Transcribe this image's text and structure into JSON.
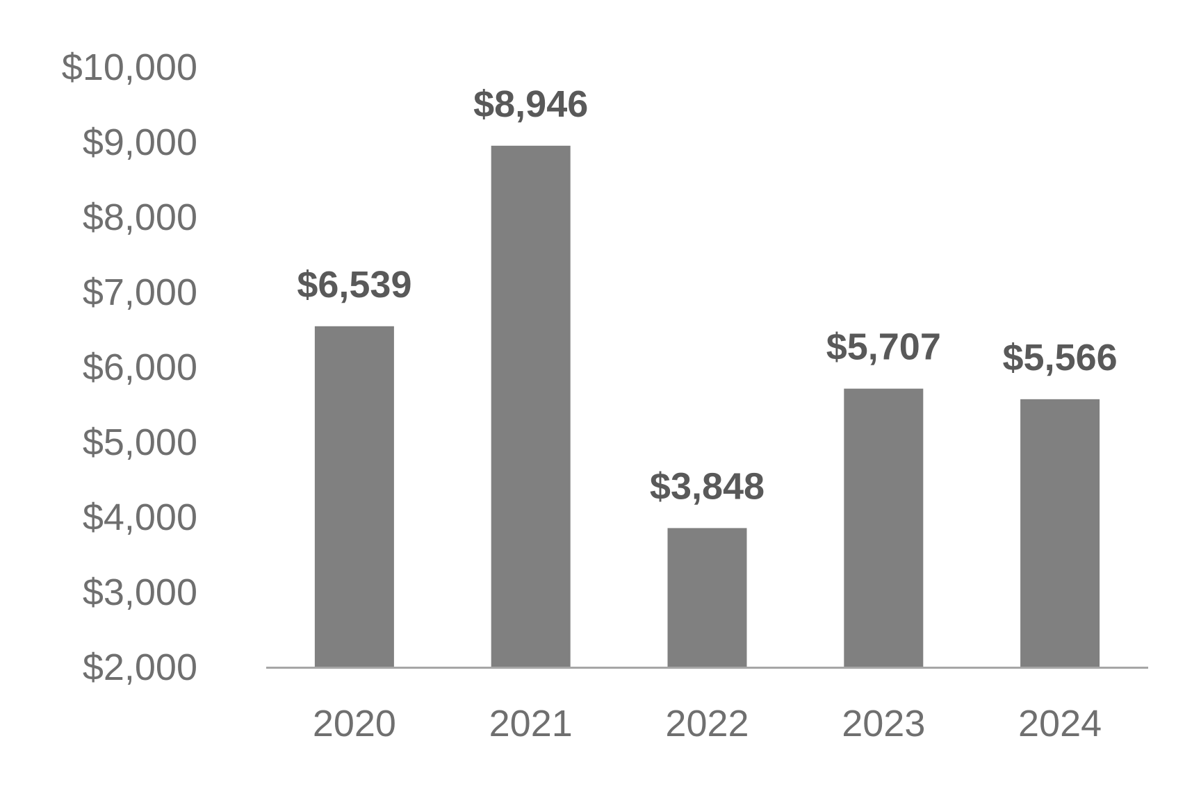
{
  "chart_data": {
    "type": "bar",
    "categories": [
      "2020",
      "2021",
      "2022",
      "2023",
      "2024"
    ],
    "values": [
      6539,
      8946,
      3848,
      5707,
      5566
    ],
    "data_labels": [
      "$6,539",
      "$8,946",
      "$3,848",
      "$5,707",
      "$5,566"
    ],
    "y_tick_values": [
      2000,
      3000,
      4000,
      5000,
      6000,
      7000,
      8000,
      9000,
      10000
    ],
    "y_tick_labels": [
      "$2,000",
      "$3,000",
      "$4,000",
      "$5,000",
      "$6,000",
      "$7,000",
      "$8,000",
      "$9,000",
      "$10,000"
    ],
    "ylim": [
      2000,
      10000
    ],
    "title": "",
    "xlabel": "",
    "ylabel": "",
    "grid": false,
    "legend": "none",
    "colors": {
      "bar": "#808080",
      "axis": "#a6a6a6",
      "tick_text": "#6f6f6f",
      "label_text": "#595959"
    }
  }
}
